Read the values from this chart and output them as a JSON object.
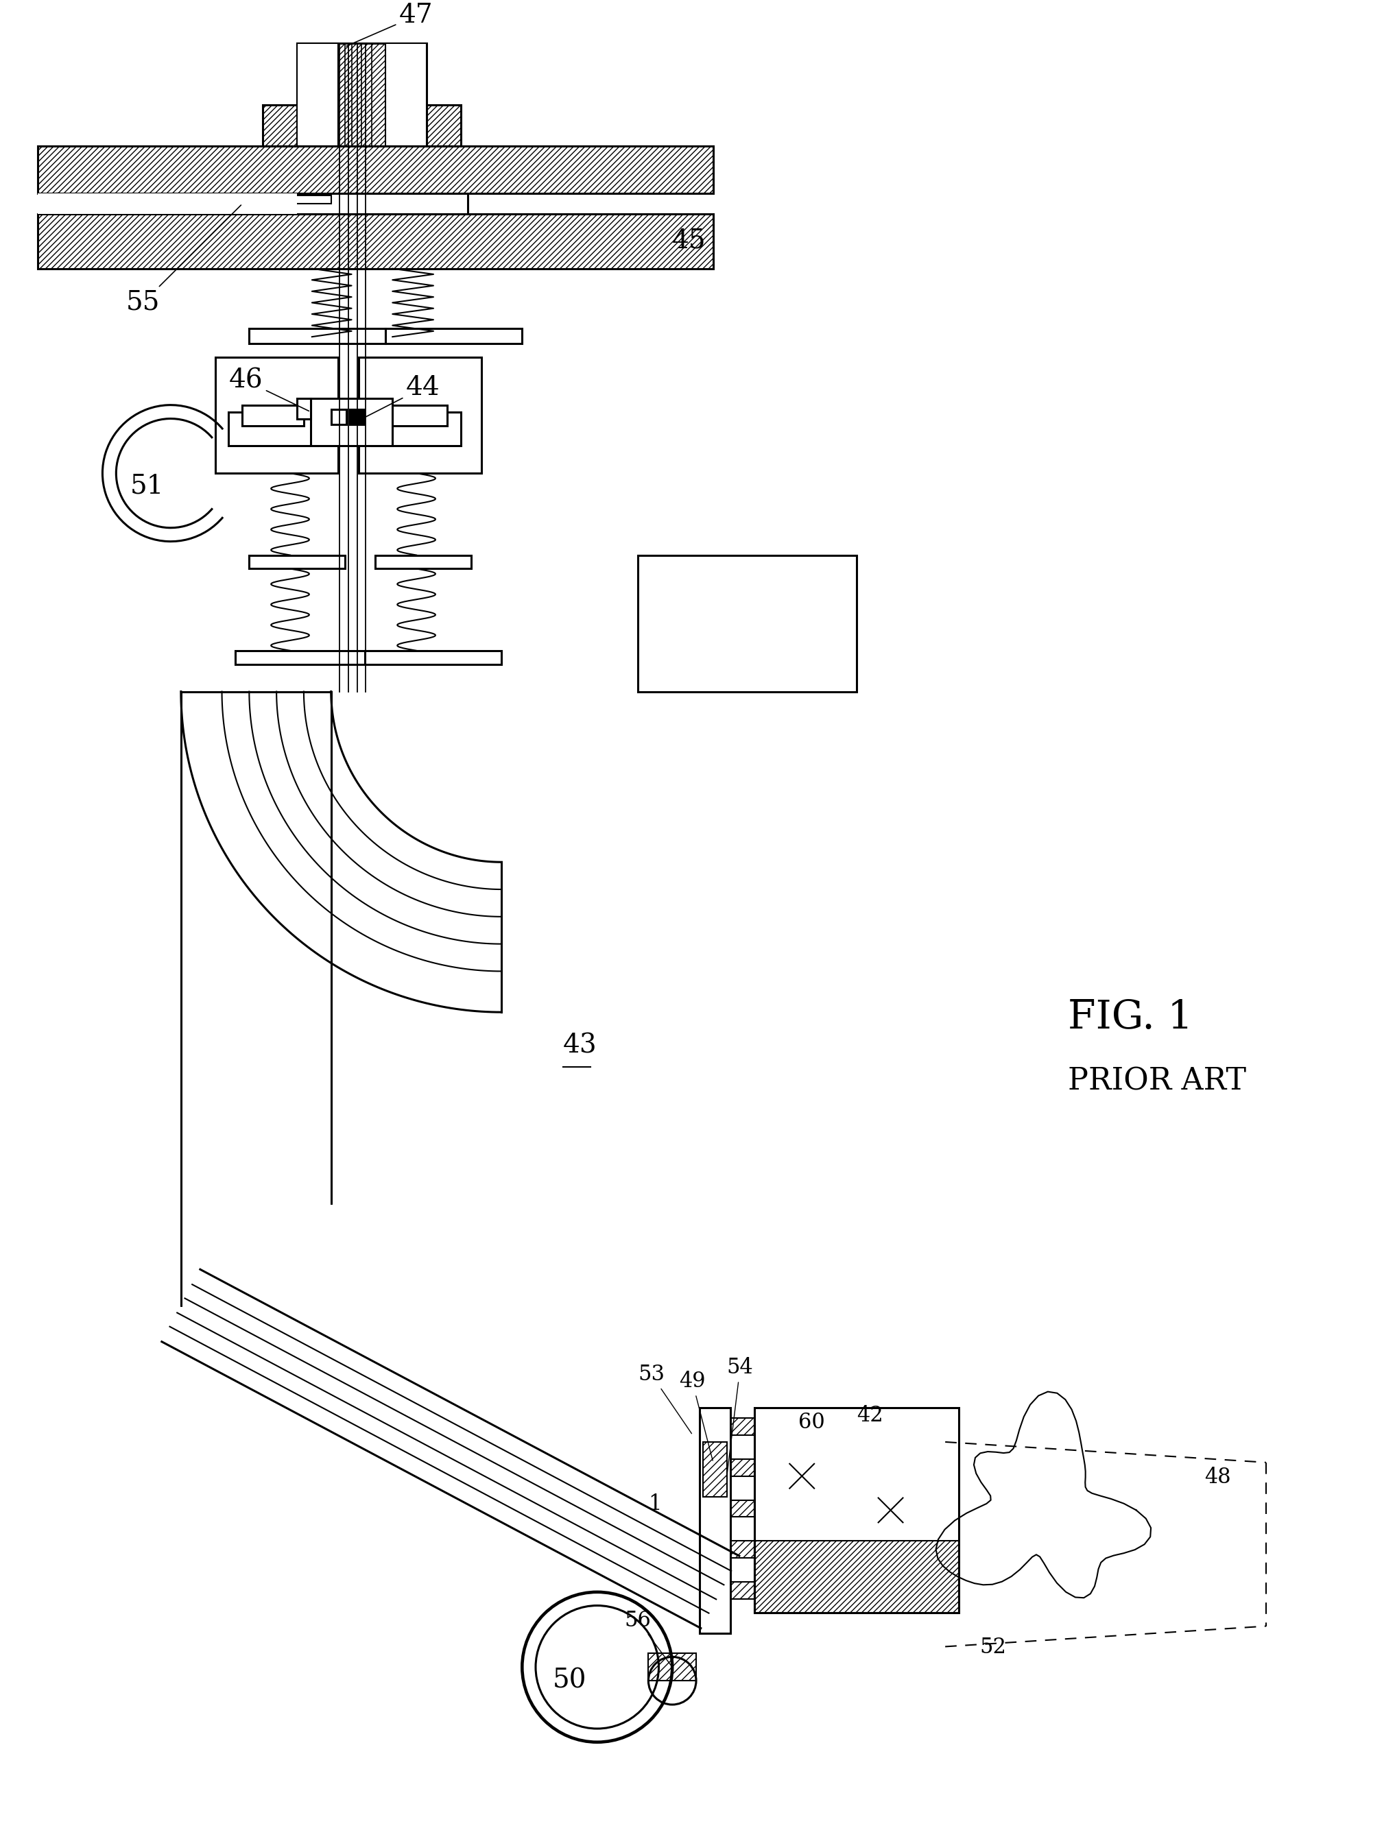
{
  "fig_label": "FIG. 1",
  "fig_sublabel": "PRIOR ART",
  "background_color": "#ffffff",
  "line_color": "#000000"
}
